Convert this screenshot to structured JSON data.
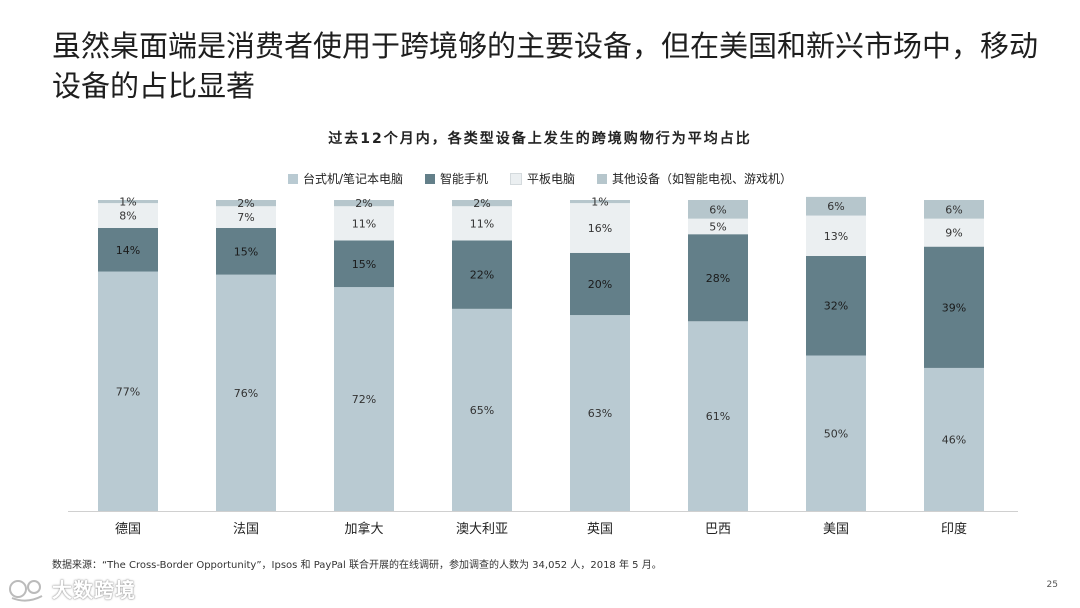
{
  "headline": "虽然桌面端是消费者使用于跨境够的主要设备，但在美国和新兴市场中，移动设备的占比显著",
  "chart_data": {
    "type": "bar",
    "stacked": true,
    "title": "过去12个月内，各类型设备上发生的跨境购物行为平均占比",
    "categories": [
      "德国",
      "法国",
      "加拿大",
      "澳大利亚",
      "英国",
      "巴西",
      "美国",
      "印度"
    ],
    "series": [
      {
        "name": "台式机/笔记本电脑",
        "color": "#b9cad2",
        "values": [
          77,
          76,
          72,
          65,
          63,
          61,
          50,
          46
        ],
        "labels": [
          "77%",
          "76%",
          "72%",
          "65%",
          "63%",
          "61%",
          "50%",
          "46%"
        ]
      },
      {
        "name": "智能手机",
        "color": "#637f89",
        "values": [
          14,
          15,
          15,
          22,
          20,
          28,
          32,
          39
        ],
        "labels": [
          "14%",
          "15%",
          "15%",
          "22%",
          "20%",
          "28%",
          "32%",
          "39%"
        ]
      },
      {
        "name": "平板电脑",
        "color": "#ebeff1",
        "values": [
          8,
          7,
          11,
          11,
          16,
          5,
          13,
          9
        ],
        "labels": [
          "8%",
          "7%",
          "11%",
          "11%",
          "16%",
          "5%",
          "13%",
          "9%"
        ]
      },
      {
        "name": "其他设备（如智能电视、游戏机）",
        "color": "#b6c6cc",
        "values": [
          1,
          2,
          2,
          2,
          1,
          6,
          6,
          6
        ],
        "labels": [
          "1%",
          "2%",
          "2%",
          "2%",
          "1%",
          "6%",
          "6%",
          "6%"
        ]
      }
    ],
    "ylim": [
      0,
      100
    ]
  },
  "source": "数据来源：“The Cross-Border Opportunity”，Ipsos 和 PayPal 联合开展的在线调研，参加调查的人数为 34,052 人，2018 年 5 月。",
  "page_number": "25",
  "watermark": {
    "text": "大数跨境",
    "icon": "watermark-logo-icon"
  }
}
